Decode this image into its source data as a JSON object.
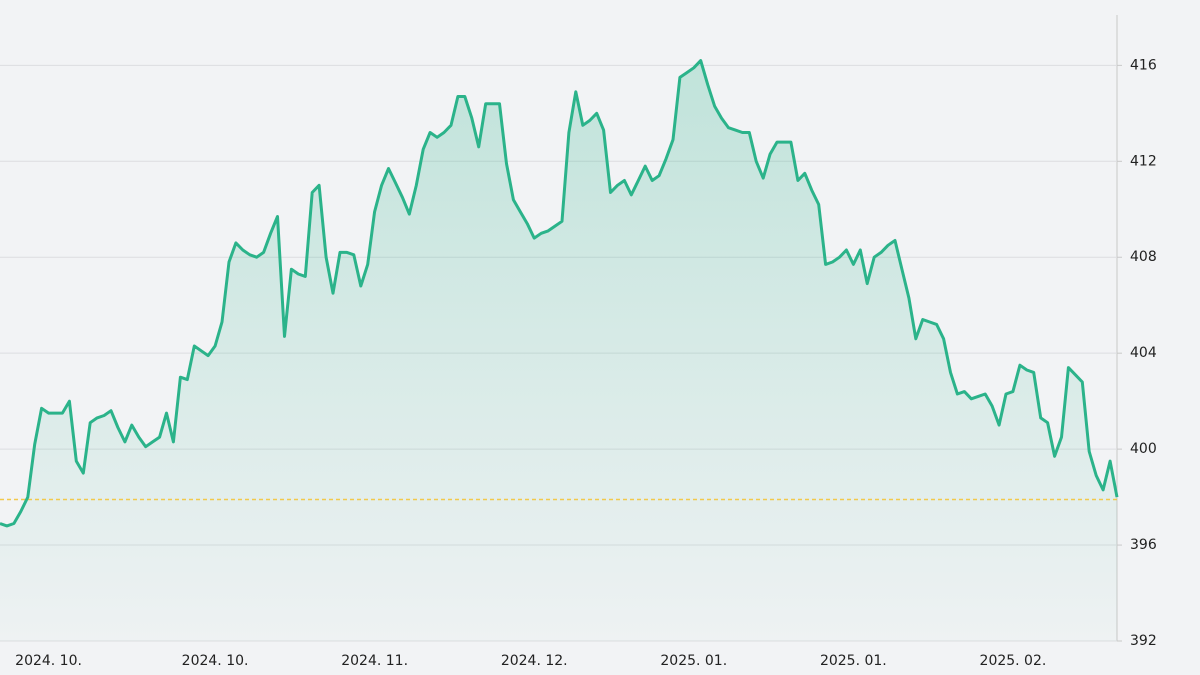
{
  "chart_data": {
    "type": "line",
    "categories": [
      null,
      null,
      null,
      null,
      null,
      null,
      null,
      "2024. 10.",
      null,
      null,
      null,
      null,
      null,
      null,
      null,
      null,
      null,
      null,
      null,
      null,
      null,
      null,
      null,
      null,
      null,
      null,
      null,
      null,
      null,
      null,
      null,
      "2024. 10.",
      null,
      null,
      null,
      null,
      null,
      null,
      null,
      null,
      null,
      null,
      null,
      null,
      null,
      null,
      null,
      null,
      null,
      null,
      null,
      null,
      null,
      null,
      "2024. 11.",
      null,
      null,
      null,
      null,
      null,
      null,
      null,
      null,
      null,
      null,
      null,
      null,
      null,
      null,
      null,
      null,
      null,
      null,
      null,
      null,
      null,
      null,
      "2024. 12.",
      null,
      null,
      null,
      null,
      null,
      null,
      null,
      null,
      null,
      null,
      null,
      null,
      null,
      null,
      null,
      null,
      null,
      null,
      null,
      null,
      null,
      null,
      "2025. 01.",
      null,
      null,
      null,
      null,
      null,
      null,
      null,
      null,
      null,
      null,
      null,
      null,
      null,
      null,
      null,
      null,
      null,
      null,
      null,
      null,
      null,
      null,
      "2025. 01.",
      null,
      null,
      null,
      null,
      null,
      null,
      null,
      null,
      null,
      null,
      null,
      null,
      null,
      null,
      null,
      null,
      null,
      null,
      null,
      null,
      null,
      null,
      "2025. 02.",
      null,
      null,
      null,
      null,
      null,
      null,
      null,
      null,
      null,
      null,
      null,
      null,
      null,
      null,
      null
    ],
    "values": [
      396.9,
      396.8,
      396.9,
      397.4,
      398.0,
      400.2,
      401.7,
      401.5,
      401.5,
      401.5,
      402.0,
      399.5,
      399.0,
      401.1,
      401.3,
      401.4,
      401.6,
      400.9,
      400.3,
      401.0,
      400.5,
      400.1,
      400.3,
      400.5,
      401.5,
      400.3,
      403.0,
      402.9,
      404.3,
      404.1,
      403.9,
      404.3,
      405.3,
      407.8,
      408.6,
      408.3,
      408.1,
      408.0,
      408.2,
      409.0,
      409.7,
      404.7,
      407.5,
      407.3,
      407.2,
      410.7,
      411.0,
      408.0,
      406.5,
      408.2,
      408.2,
      408.1,
      406.8,
      407.7,
      409.9,
      411.0,
      411.7,
      411.1,
      410.5,
      409.8,
      411.0,
      412.5,
      413.2,
      413.0,
      413.2,
      413.5,
      414.7,
      414.7,
      413.8,
      412.6,
      414.4,
      414.4,
      414.4,
      411.9,
      410.4,
      409.9,
      409.4,
      408.8,
      409.0,
      409.1,
      409.3,
      409.5,
      413.2,
      414.9,
      413.5,
      413.7,
      414.0,
      413.3,
      410.7,
      411.0,
      411.2,
      410.6,
      411.2,
      411.8,
      411.2,
      411.4,
      412.1,
      412.9,
      415.5,
      415.7,
      415.9,
      416.2,
      415.2,
      414.3,
      413.8,
      413.4,
      413.3,
      413.2,
      413.2,
      412.0,
      411.3,
      412.3,
      412.8,
      412.8,
      412.8,
      411.2,
      411.5,
      410.8,
      410.2,
      407.7,
      407.8,
      408.0,
      408.3,
      407.7,
      408.3,
      406.9,
      408.0,
      408.2,
      408.5,
      408.7,
      407.5,
      406.3,
      404.6,
      405.4,
      405.3,
      405.2,
      404.6,
      403.2,
      402.3,
      402.4,
      402.1,
      402.2,
      402.3,
      401.8,
      401.0,
      402.3,
      402.4,
      403.5,
      403.3,
      403.2,
      401.3,
      401.1,
      399.7,
      400.5,
      403.4,
      403.1,
      402.8,
      399.9,
      398.9,
      398.3,
      399.5,
      398.0
    ],
    "color": "#2bb38a",
    "reference_line": 397.9,
    "reference_color": "#f2c94c",
    "ylim": [
      392,
      418.1
    ],
    "yticks": [
      392,
      396,
      400,
      404,
      408,
      412,
      416
    ],
    "grid": true
  }
}
